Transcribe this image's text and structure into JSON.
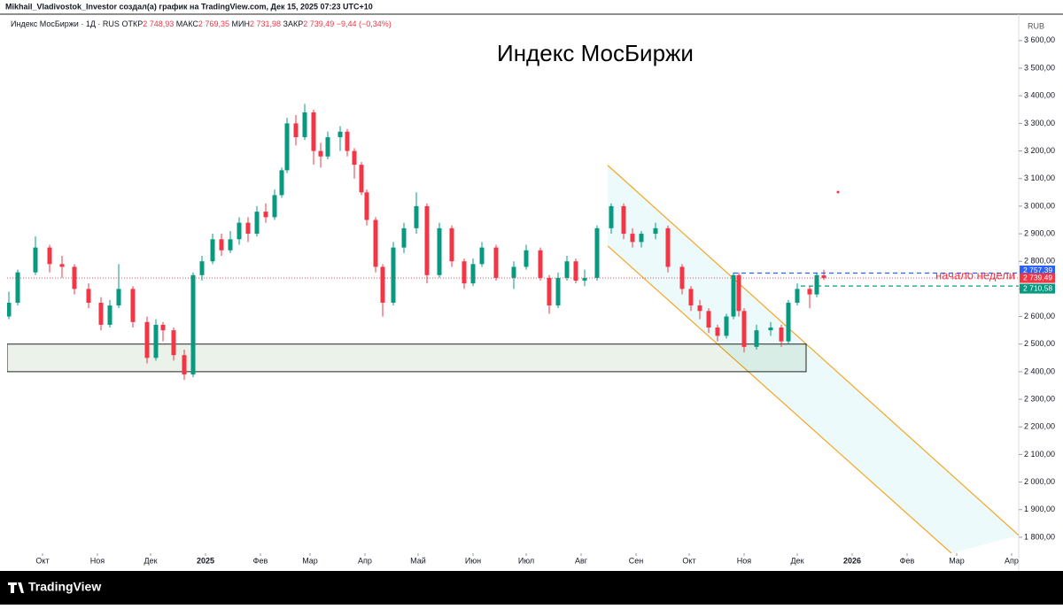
{
  "header": "Mikhail_Vladivostok_Investor создал(а) график на TradingView.com, Дек 15, 2025 07:23 UTC+10",
  "footer": "TradingView",
  "chart_data": {
    "type": "candlestick",
    "title": "Индекс МосБиржи",
    "currency": "RUB",
    "legend": {
      "symbol": "Индекс МосБиржи · 1Д · RUS",
      "items": [
        {
          "label": "ОТКР",
          "text": "2 748,93"
        },
        {
          "label": "МАКС",
          "text": "2 769,35"
        },
        {
          "label": "МИН",
          "text": "2 731,98"
        },
        {
          "label": "ЗАКР",
          "text": "2 739,49"
        }
      ],
      "change": "−9,44 (−0,34%)"
    },
    "up_color": "#089981",
    "down_color": "#f23645",
    "x": [
      -19,
      -14,
      -4,
      4,
      11,
      18,
      26,
      33,
      38,
      43,
      51,
      59,
      64,
      68,
      74,
      80,
      85,
      90,
      96,
      101,
      106,
      111,
      116,
      121,
      126,
      131,
      135,
      138,
      143,
      148,
      153,
      157,
      161,
      168,
      172,
      176,
      180,
      183,
      188,
      192,
      198,
      204,
      211,
      217,
      224,
      231,
      238,
      243,
      248,
      256,
      266,
      273,
      281,
      286,
      291,
      296,
      301,
      306,
      313,
      321,
      328,
      333,
      338,
      346,
      353,
      361,
      366,
      371,
      376,
      381,
      386,
      390,
      393,
      396,
      403,
      411,
      417,
      421,
      426,
      433,
      437,
      441
    ],
    "open": [
      2600,
      2650,
      2760,
      2850,
      2790,
      2780,
      2700,
      2650,
      2570,
      2640,
      2700,
      2580,
      2450,
      2570,
      2550,
      2460,
      2390,
      2750,
      2800,
      2880,
      2840,
      2880,
      2940,
      2900,
      2980,
      2960,
      3040,
      3130,
      3300,
      3250,
      3340,
      3200,
      3180,
      3250,
      3270,
      3200,
      3150,
      3050,
      2950,
      2780,
      2650,
      2850,
      2920,
      3000,
      2750,
      2920,
      2800,
      2720,
      2790,
      2850,
      2740,
      2780,
      2840,
      2740,
      2640,
      2740,
      2800,
      2730,
      2740,
      2920,
      3000,
      2900,
      2870,
      2900,
      2920,
      2780,
      2700,
      2640,
      2620,
      2560,
      2530,
      2600,
      2750,
      2620,
      2490,
      2550,
      2560,
      2510,
      2650,
      2700,
      2680,
      2748.93
    ],
    "high": [
      2690,
      2770,
      2890,
      2860,
      2820,
      2790,
      2720,
      2670,
      2660,
      2790,
      2710,
      2600,
      2590,
      2580,
      2560,
      2480,
      2760,
      2820,
      2900,
      2900,
      2910,
      2960,
      2960,
      3000,
      3010,
      3060,
      3140,
      3320,
      3330,
      3370,
      3350,
      3230,
      3270,
      3290,
      3280,
      3210,
      3160,
      3060,
      2960,
      2790,
      2870,
      2940,
      3050,
      3010,
      2940,
      2930,
      2810,
      2810,
      2870,
      2860,
      2800,
      2860,
      2850,
      2750,
      2760,
      2820,
      2810,
      2770,
      2930,
      3010,
      3010,
      2920,
      2910,
      2940,
      2930,
      2790,
      2710,
      2660,
      2630,
      2570,
      2610,
      2760,
      2760,
      2630,
      2570,
      2580,
      2570,
      2660,
      2720,
      2710,
      2760,
      2769.35
    ],
    "low": [
      2590,
      2640,
      2750,
      2760,
      2740,
      2680,
      2630,
      2550,
      2560,
      2630,
      2560,
      2430,
      2440,
      2510,
      2440,
      2370,
      2380,
      2730,
      2790,
      2820,
      2830,
      2860,
      2870,
      2890,
      2940,
      2950,
      3030,
      3120,
      3220,
      3240,
      3150,
      3140,
      3170,
      3200,
      3180,
      3100,
      3040,
      2930,
      2760,
      2600,
      2640,
      2830,
      2900,
      2720,
      2740,
      2780,
      2700,
      2710,
      2780,
      2730,
      2700,
      2770,
      2730,
      2610,
      2630,
      2730,
      2720,
      2710,
      2730,
      2900,
      2880,
      2850,
      2850,
      2880,
      2760,
      2680,
      2620,
      2590,
      2540,
      2510,
      2520,
      2590,
      2600,
      2470,
      2480,
      2530,
      2490,
      2500,
      2640,
      2630,
      2670,
      2731.98
    ],
    "close": [
      2650,
      2760,
      2850,
      2790,
      2780,
      2700,
      2650,
      2570,
      2640,
      2700,
      2580,
      2450,
      2570,
      2550,
      2460,
      2390,
      2750,
      2800,
      2880,
      2840,
      2880,
      2940,
      2900,
      2980,
      2960,
      3040,
      3130,
      3300,
      3250,
      3340,
      3200,
      3180,
      3250,
      3270,
      3200,
      3150,
      3050,
      2950,
      2780,
      2650,
      2850,
      2920,
      3000,
      2750,
      2920,
      2800,
      2720,
      2790,
      2850,
      2740,
      2780,
      2840,
      2740,
      2640,
      2740,
      2800,
      2730,
      2740,
      2920,
      3000,
      2900,
      2870,
      2900,
      2920,
      2780,
      2700,
      2640,
      2620,
      2560,
      2530,
      2600,
      2750,
      2620,
      2490,
      2550,
      2560,
      2510,
      2650,
      2700,
      2680,
      2750,
      2739.49
    ],
    "xlim": [
      -20,
      551
    ],
    "ylim": [
      1742,
      3683
    ],
    "xticks": [
      {
        "value": 0,
        "label": "Окт"
      },
      {
        "value": 31,
        "label": "Ноя"
      },
      {
        "value": 61,
        "label": "Дек"
      },
      {
        "value": 92,
        "label": "2025"
      },
      {
        "value": 123,
        "label": "Фев"
      },
      {
        "value": 151,
        "label": "Мар"
      },
      {
        "value": 182,
        "label": "Апр"
      },
      {
        "value": 212,
        "label": "Май"
      },
      {
        "value": 243,
        "label": "Июн"
      },
      {
        "value": 273,
        "label": "Июл"
      },
      {
        "value": 304,
        "label": "Авг"
      },
      {
        "value": 335,
        "label": "Сен"
      },
      {
        "value": 365,
        "label": "Окт"
      },
      {
        "value": 396,
        "label": "Ноя"
      },
      {
        "value": 426,
        "label": "Дек"
      },
      {
        "value": 457,
        "label": "2026"
      },
      {
        "value": 488,
        "label": "Фев"
      },
      {
        "value": 516,
        "label": "Мар"
      },
      {
        "value": 547,
        "label": "Апр"
      }
    ],
    "yticks": [
      {
        "value": 1800,
        "label": "1 800,00"
      },
      {
        "value": 1900,
        "label": "1 900,00"
      },
      {
        "value": 2000,
        "label": "2 000,00"
      },
      {
        "value": 2100,
        "label": "2 100,00"
      },
      {
        "value": 2200,
        "label": "2 200,00"
      },
      {
        "value": 2300,
        "label": "2 300,00"
      },
      {
        "value": 2400,
        "label": "2 400,00"
      },
      {
        "value": 2500,
        "label": "2 500,00"
      },
      {
        "value": 2600,
        "label": "2 600,00"
      },
      {
        "value": 2700,
        "label": "2 700,00"
      },
      {
        "value": 2800,
        "label": "2 800,00"
      },
      {
        "value": 2900,
        "label": "2 900,00"
      },
      {
        "value": 3000,
        "label": "3 000,00"
      },
      {
        "value": 3100,
        "label": "3 100,00"
      },
      {
        "value": 3200,
        "label": "3 200,00"
      },
      {
        "value": 3300,
        "label": "3 300,00"
      },
      {
        "value": 3400,
        "label": "3 400,00"
      },
      {
        "value": 3500,
        "label": "3 500,00"
      },
      {
        "value": 3600,
        "label": "3 600,00"
      }
    ],
    "zone": {
      "x": [
        -20,
        431
      ],
      "y": [
        2400,
        2500
      ],
      "color": "#2e7d32"
    },
    "channel": {
      "color": "#f5a623",
      "upper": {
        "x": [
          319,
          551
        ],
        "y": [
          3148,
          1807
        ]
      },
      "lower": {
        "x": [
          319,
          513
        ],
        "y": [
          2856,
          1742
        ]
      }
    },
    "levels": [
      {
        "value": 2757.39,
        "label": "2 757,39",
        "color": "#2962ff",
        "x0": 390
      },
      {
        "value": 2739.49,
        "label": "2 739,49",
        "color": "#f23645",
        "x0": -20
      },
      {
        "value": 2710.58,
        "label": "2 710,58",
        "color": "#089981",
        "x0": 428
      }
    ],
    "note": {
      "text": "начало недели",
      "color": "#f23645"
    },
    "marker": {
      "x": 449,
      "y": 3051,
      "color": "#f23645"
    }
  }
}
